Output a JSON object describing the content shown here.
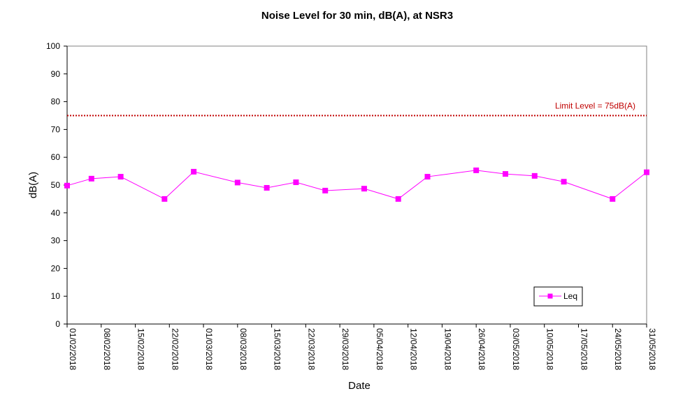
{
  "chart_data": {
    "type": "line",
    "title": "Noise Level for 30 min, dB(A), at NSR3",
    "xlabel": "Date",
    "ylabel": "dB(A)",
    "ylim": [
      0,
      100
    ],
    "yticks": [
      0,
      10,
      20,
      30,
      40,
      50,
      60,
      70,
      80,
      90,
      100
    ],
    "xlim": [
      "2018-02-01",
      "2018-05-31"
    ],
    "xtick_dates": [
      "2018-02-01",
      "2018-02-08",
      "2018-02-15",
      "2018-02-22",
      "2018-03-01",
      "2018-03-08",
      "2018-03-15",
      "2018-03-22",
      "2018-03-29",
      "2018-04-05",
      "2018-04-12",
      "2018-04-19",
      "2018-04-26",
      "2018-05-03",
      "2018-05-10",
      "2018-05-17",
      "2018-05-24",
      "2018-05-31"
    ],
    "xtick_labels": [
      "01/02/2018",
      "08/02/2018",
      "15/02/2018",
      "22/02/2018",
      "01/03/2018",
      "08/03/2018",
      "15/03/2018",
      "22/03/2018",
      "29/03/2018",
      "05/04/2018",
      "12/04/2018",
      "19/04/2018",
      "26/04/2018",
      "03/05/2018",
      "10/05/2018",
      "17/05/2018",
      "24/05/2018",
      "31/05/2018"
    ],
    "grid": false,
    "legend_position": "bottom-right",
    "series": [
      {
        "name": "Leq",
        "color": "#ff00ff",
        "marker": "square",
        "x": [
          "2018-02-01",
          "2018-02-06",
          "2018-02-12",
          "2018-02-21",
          "2018-02-27",
          "2018-03-08",
          "2018-03-14",
          "2018-03-20",
          "2018-03-26",
          "2018-04-03",
          "2018-04-10",
          "2018-04-16",
          "2018-04-26",
          "2018-05-02",
          "2018-05-08",
          "2018-05-14",
          "2018-05-24",
          "2018-05-31"
        ],
        "y": [
          49.8,
          52.3,
          53.0,
          45.0,
          54.8,
          50.9,
          49.0,
          51.0,
          48.0,
          48.7,
          45.0,
          53.0,
          55.3,
          54.0,
          53.3,
          51.2,
          45.0,
          54.6
        ]
      }
    ],
    "reference_lines": [
      {
        "label": "Limit Level  = 75dB(A)",
        "y": 75,
        "color": "#c00000",
        "style": "dotted"
      }
    ]
  }
}
